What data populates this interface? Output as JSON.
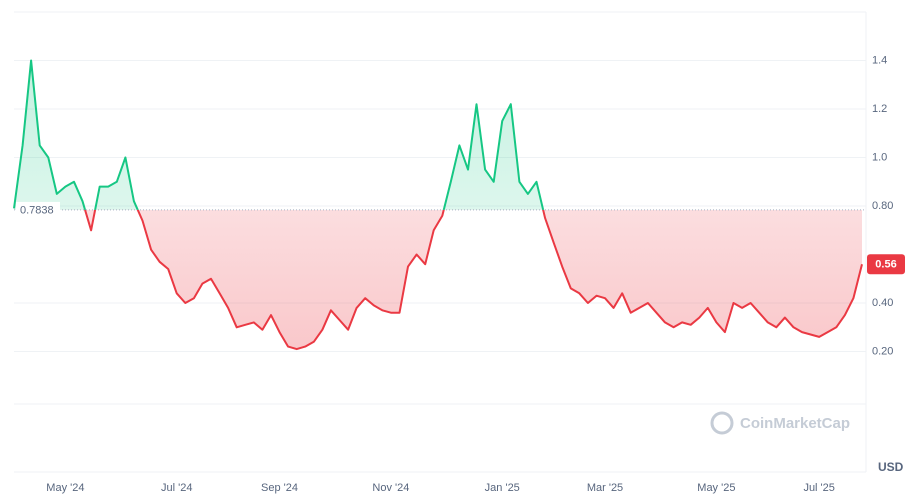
{
  "chart_data": {
    "type": "baseline-line",
    "currency": "USD",
    "watermark": "CoinMarketCap",
    "baseline": 0.7838,
    "up_color": "#16c784",
    "down_color": "#ea3943",
    "grid": true,
    "ylim": [
      0,
      1.6
    ],
    "yticks": [
      {
        "value": 0.2,
        "label": "0.20"
      },
      {
        "value": 0.4,
        "label": "0.40"
      },
      {
        "value": 0.8,
        "label": "0.80"
      },
      {
        "value": 1,
        "label": "1.0"
      },
      1.2,
      1.4
    ],
    "categories": [
      null,
      null,
      null,
      null,
      null,
      null,
      "May '24",
      null,
      null,
      null,
      null,
      null,
      null,
      null,
      null,
      null,
      null,
      null,
      null,
      "Jul '24",
      null,
      null,
      null,
      null,
      null,
      null,
      null,
      null,
      null,
      null,
      null,
      "Sep '24",
      null,
      null,
      null,
      null,
      null,
      null,
      null,
      null,
      null,
      null,
      null,
      null,
      "Nov '24",
      null,
      null,
      null,
      null,
      null,
      null,
      null,
      null,
      null,
      null,
      null,
      null,
      "Jan '25",
      null,
      null,
      null,
      null,
      null,
      null,
      null,
      null,
      null,
      null,
      null,
      "Mar '25",
      null,
      null,
      null,
      null,
      null,
      null,
      null,
      null,
      null,
      null,
      null,
      null,
      "May '25",
      null,
      null,
      null,
      null,
      null,
      null,
      null,
      null,
      null,
      null,
      null,
      "Jul '25",
      null,
      null,
      null,
      null,
      null
    ],
    "values": [
      0.79,
      1.05,
      1.4,
      1.05,
      1.0,
      0.85,
      0.88,
      0.9,
      0.82,
      0.7,
      0.88,
      0.88,
      0.9,
      1.0,
      0.82,
      0.74,
      0.62,
      0.57,
      0.54,
      0.44,
      0.4,
      0.42,
      0.48,
      0.5,
      0.44,
      0.38,
      0.3,
      0.31,
      0.32,
      0.29,
      0.35,
      0.28,
      0.22,
      0.21,
      0.22,
      0.24,
      0.29,
      0.37,
      0.33,
      0.29,
      0.38,
      0.42,
      0.39,
      0.37,
      0.36,
      0.36,
      0.55,
      0.6,
      0.56,
      0.7,
      0.76,
      0.9,
      1.05,
      0.95,
      1.22,
      0.95,
      0.9,
      1.15,
      1.22,
      0.9,
      0.85,
      0.9,
      0.75,
      0.65,
      0.55,
      0.46,
      0.44,
      0.4,
      0.43,
      0.42,
      0.38,
      0.44,
      0.36,
      0.38,
      0.4,
      0.36,
      0.32,
      0.3,
      0.32,
      0.31,
      0.34,
      0.38,
      0.32,
      0.28,
      0.4,
      0.38,
      0.4,
      0.36,
      0.32,
      0.3,
      0.34,
      0.3,
      0.28,
      0.27,
      0.26,
      0.28,
      0.3,
      0.35,
      0.42,
      0.56
    ]
  }
}
